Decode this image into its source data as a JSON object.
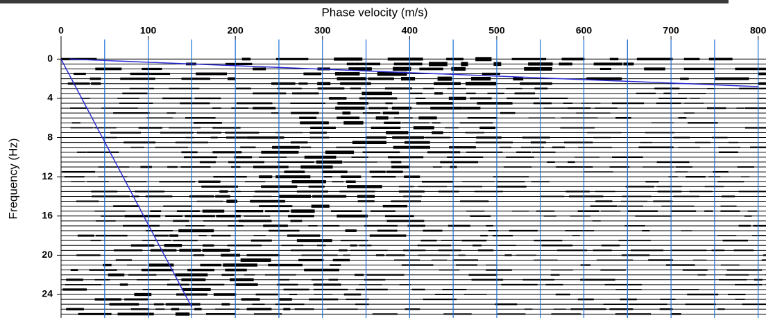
{
  "chart_data": {
    "type": "dispersion-image",
    "title": "Phase velocity (m/s)",
    "y_label": "Frequency (Hz)",
    "xlim": [
      0,
      809
    ],
    "ylim": [
      -2,
      26.4
    ],
    "xticks": [
      0,
      100,
      200,
      300,
      400,
      500,
      600,
      700,
      800
    ],
    "yticks": [
      0,
      4,
      8,
      12,
      16,
      20,
      24
    ],
    "x_grid": [
      50,
      100,
      150,
      200,
      250,
      300,
      350,
      400,
      450,
      500,
      550,
      600,
      650,
      700,
      750,
      800
    ],
    "grid_color": "#1a6fd6",
    "lines": [
      {
        "color": "#2b2bd6",
        "x": [
          0,
          150
        ],
        "y": [
          0,
          25.3
        ]
      },
      {
        "color": "#2b2bd6",
        "x": [
          10,
          800
        ],
        "y": [
          0,
          2.8
        ]
      }
    ]
  }
}
